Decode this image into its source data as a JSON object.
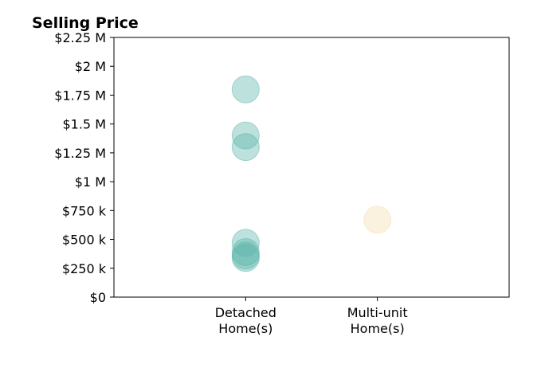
{
  "chart_data": {
    "type": "scatter",
    "title": "Selling Price",
    "xlabel": "",
    "ylabel": "",
    "categories": [
      {
        "line1": "Detached",
        "line2": "Home(s)"
      },
      {
        "line1": "Multi-unit",
        "line2": "Home(s)"
      }
    ],
    "ylim": [
      0,
      2250000
    ],
    "y_ticks": [
      {
        "value": 0,
        "label": "$0"
      },
      {
        "value": 250000,
        "label": "$250 k"
      },
      {
        "value": 500000,
        "label": "$500 k"
      },
      {
        "value": 750000,
        "label": "$750 k"
      },
      {
        "value": 1000000,
        "label": "$1 M"
      },
      {
        "value": 1250000,
        "label": "$1.25 M"
      },
      {
        "value": 1500000,
        "label": "$1.5 M"
      },
      {
        "value": 1750000,
        "label": "$1.75 M"
      },
      {
        "value": 2000000,
        "label": "$2 M"
      },
      {
        "value": 2250000,
        "label": "$2.25 M"
      }
    ],
    "series": [
      {
        "category": "Detached Home(s)",
        "color": "#5bb5a9",
        "values": [
          1800000,
          1400000,
          1300000,
          470000,
          390000,
          360000,
          340000
        ]
      },
      {
        "category": "Multi-unit Home(s)",
        "color": "#f3ddb0",
        "values": [
          670000
        ]
      }
    ],
    "grid": false,
    "legend": "none"
  }
}
